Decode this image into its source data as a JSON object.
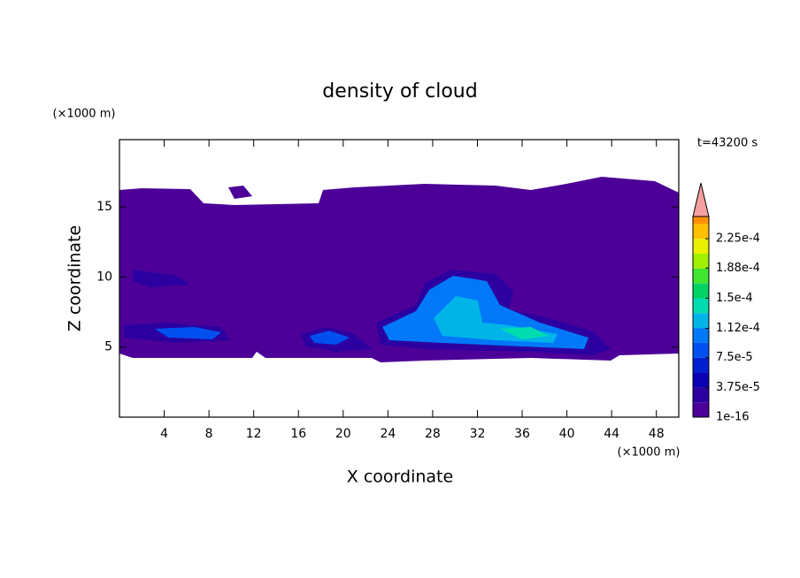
{
  "chart_data": {
    "type": "contour",
    "title": "density of cloud",
    "xlabel": "X coordinate",
    "ylabel": "Z coordinate",
    "xunit": "(×1000 m)",
    "yunit": "(×1000 m)",
    "annotation": "t=43200 s",
    "xlim": [
      0,
      50
    ],
    "ylim": [
      0,
      19.8
    ],
    "xticks": [
      4,
      8,
      12,
      16,
      20,
      24,
      28,
      32,
      36,
      40,
      44,
      48
    ],
    "yticks": [
      5,
      10,
      15
    ],
    "colorbar": {
      "lim": [
        0,
        0.000253
      ],
      "ticks": [
        {
          "value": 1e-16,
          "label": "1e-16"
        },
        {
          "value": 3.75e-05,
          "label": "3.75e-5"
        },
        {
          "value": 7.5e-05,
          "label": "7.5e-5"
        },
        {
          "value": 0.000112,
          "label": "1.12e-4"
        },
        {
          "value": 0.00015,
          "label": "1.5e-4"
        },
        {
          "value": 0.000188,
          "label": "1.88e-4"
        },
        {
          "value": 0.000225,
          "label": "2.25e-4"
        }
      ],
      "colors": [
        "#4c0098",
        "#2c00a0",
        "#0a00b4",
        "#0020d0",
        "#0050f0",
        "#0078f8",
        "#00b4e8",
        "#00dcb0",
        "#00d264",
        "#40e630",
        "#a0f000",
        "#e8f000",
        "#ffc000",
        "#ff9000",
        "#ff5000",
        "#f02020"
      ],
      "extend_color": "#f5a0a0"
    }
  }
}
